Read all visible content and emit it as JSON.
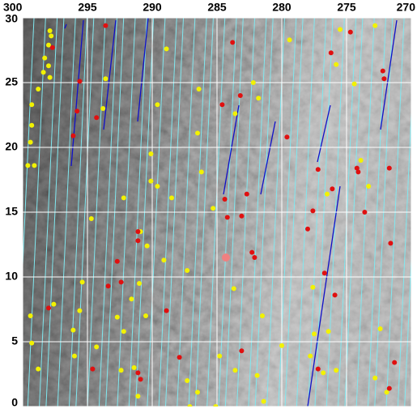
{
  "chart_data": {
    "type": "scatter",
    "xlim": [
      300,
      270
    ],
    "ylim": [
      0,
      30
    ],
    "xticks": [
      300,
      295,
      290,
      285,
      280,
      275,
      270
    ],
    "yticks": [
      0,
      5,
      10,
      15,
      20,
      25,
      30
    ],
    "grid": true,
    "series": [
      {
        "color": "#f2f200",
        "x": [
          297.9,
          297.8,
          298.0,
          298.3,
          298.0,
          298.4,
          297.9,
          298.8,
          299.3,
          299.3,
          299.4,
          299.6,
          299.1,
          293.6,
          293.8,
          289.6,
          288.9,
          286.4,
          286.5,
          290.1,
          289.6,
          288.5,
          286.2,
          290.1,
          292.2,
          294.7,
          290.9,
          290.4,
          289.1,
          287.3,
          291.0,
          291.6,
          290.5,
          292.7,
          292.2,
          295.6,
          295.4,
          297.6,
          299.4,
          299.3,
          296.1,
          296.0,
          298.8,
          294.3,
          292.4,
          291.4,
          287.3,
          286.5,
          284.8,
          283.6,
          281.9,
          283.7,
          281.5,
          281.8,
          283.6,
          279.4,
          282.2,
          275.5,
          272.8,
          275.8,
          274.4,
          273.9,
          273.3,
          276.5,
          277.6,
          277.5,
          276.4,
          272.4,
          280.0,
          277.8,
          275.8,
          276.8,
          272.8,
          271.9,
          285.3,
          287.1,
          291.1,
          285.1,
          281.4
        ],
        "values": [
          29.0,
          28.6,
          27.9,
          26.9,
          26.3,
          25.8,
          25.4,
          24.5,
          23.3,
          21.7,
          20.4,
          18.6,
          18.6,
          25.3,
          23.0,
          23.3,
          27.6,
          24.5,
          21.1,
          19.5,
          17.0,
          16.1,
          18.1,
          17.4,
          16.1,
          14.5,
          13.5,
          12.4,
          11.3,
          10.5,
          9.5,
          8.3,
          7.0,
          6.9,
          5.8,
          7.4,
          9.6,
          7.9,
          7.0,
          4.9,
          5.9,
          3.9,
          2.9,
          4.6,
          2.8,
          3.0,
          2.0,
          1.1,
          3.9,
          2.8,
          2.4,
          9.1,
          7.0,
          23.8,
          22.6,
          28.3,
          25.0,
          29.1,
          29.4,
          26.4,
          24.9,
          19.0,
          17.0,
          16.4,
          9.2,
          5.6,
          5.8,
          6.0,
          4.7,
          3.9,
          2.8,
          2.6,
          2.2,
          1.1,
          15.3,
          0.0,
          0.8,
          0.0,
          0.4
        ]
      },
      {
        "color": "#e01010",
        "x": [
          293.6,
          297.7,
          295.6,
          295.8,
          294.3,
          296.1,
          283.8,
          284.6,
          283.2,
          279.6,
          277.2,
          276.2,
          274.7,
          272.1,
          272.2,
          274.2,
          274.1,
          276.1,
          277.6,
          278.0,
          273.6,
          271.7,
          271.6,
          282.7,
          284.4,
          283.1,
          284.2,
          291.1,
          291.1,
          292.7,
          292.4,
          293.4,
          298.0,
          288.9,
          282.3,
          282.1,
          276.7,
          275.9,
          277.2,
          283.1,
          287.9,
          291.1,
          290.9,
          271.3,
          271.7,
          294.6
        ],
        "values": [
          29.4,
          27.7,
          25.1,
          22.8,
          22.3,
          20.9,
          28.1,
          23.3,
          24.0,
          20.8,
          18.3,
          27.3,
          28.9,
          25.3,
          25.9,
          18.4,
          18.1,
          16.8,
          15.1,
          13.7,
          15.0,
          18.4,
          12.6,
          16.4,
          16.0,
          14.7,
          14.6,
          12.8,
          13.5,
          11.2,
          9.6,
          9.3,
          7.6,
          7.4,
          11.9,
          11.5,
          10.3,
          8.6,
          2.9,
          4.3,
          3.8,
          2.6,
          2.1,
          3.4,
          1.4,
          2.9
        ]
      }
    ]
  }
}
